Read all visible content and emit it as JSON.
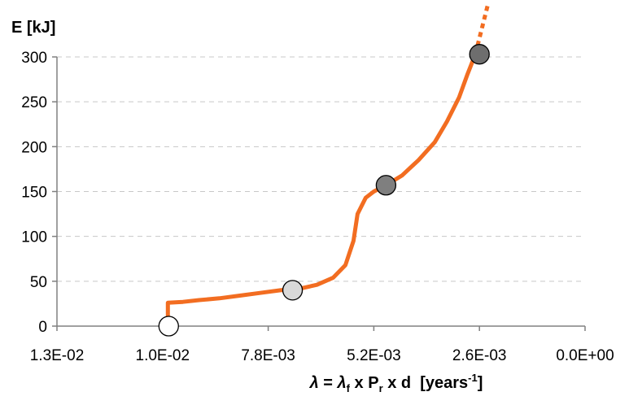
{
  "chart_data": {
    "type": "line",
    "ylabel": "E [kJ]",
    "xlabel": {
      "lambda": "λ",
      "eq": " = ",
      "lambda2": "λ",
      "sub_f": "f",
      "x1": " x P",
      "sub_r": "r",
      "x2": " x d  [years",
      "sup": "-1",
      "close": "]"
    },
    "x_reversed": true,
    "xlim": [
      0.0,
      0.013
    ],
    "ylim": [
      0,
      300
    ],
    "x_ticks": [
      0.013,
      0.0104,
      0.0078,
      0.0052,
      0.0026,
      0.0
    ],
    "x_tick_labels": [
      "1.3E-02",
      "1.0E-02",
      "7.8E-03",
      "5.2E-03",
      "2.6E-03",
      "0.0E+00"
    ],
    "y_ticks": [
      0,
      50,
      100,
      150,
      200,
      250,
      300
    ],
    "y_tick_labels": [
      "0",
      "50",
      "100",
      "150",
      "200",
      "250",
      "300"
    ],
    "grid": "horizontal-dashed",
    "line_color": "#f26d21",
    "series": [
      {
        "points": [
          [
            0.01027,
            0
          ],
          [
            0.01027,
            26
          ],
          [
            0.0099,
            27
          ],
          [
            0.0095,
            29
          ],
          [
            0.009,
            31
          ],
          [
            0.0085,
            34
          ],
          [
            0.008,
            37
          ],
          [
            0.0075,
            40
          ],
          [
            0.007,
            42
          ],
          [
            0.0066,
            46
          ],
          [
            0.0062,
            54
          ],
          [
            0.0059,
            68
          ],
          [
            0.0057,
            95
          ],
          [
            0.0056,
            125
          ],
          [
            0.0054,
            143
          ],
          [
            0.0052,
            150
          ],
          [
            0.0049,
            157
          ],
          [
            0.0045,
            168
          ],
          [
            0.0041,
            185
          ],
          [
            0.0037,
            205
          ],
          [
            0.0034,
            228
          ],
          [
            0.0031,
            255
          ],
          [
            0.0029,
            280
          ],
          [
            0.0027,
            303
          ]
        ],
        "extension": [
          [
            0.0027,
            303
          ],
          [
            0.0024,
            357
          ]
        ]
      }
    ],
    "markers": [
      {
        "x": 0.01025,
        "y": 0,
        "color": "#ffffff"
      },
      {
        "x": 0.0072,
        "y": 40,
        "color": "#d9d9d9"
      },
      {
        "x": 0.0049,
        "y": 157,
        "color": "#7f7f7f"
      },
      {
        "x": 0.0026,
        "y": 303,
        "color": "#6e6e6e"
      }
    ]
  }
}
